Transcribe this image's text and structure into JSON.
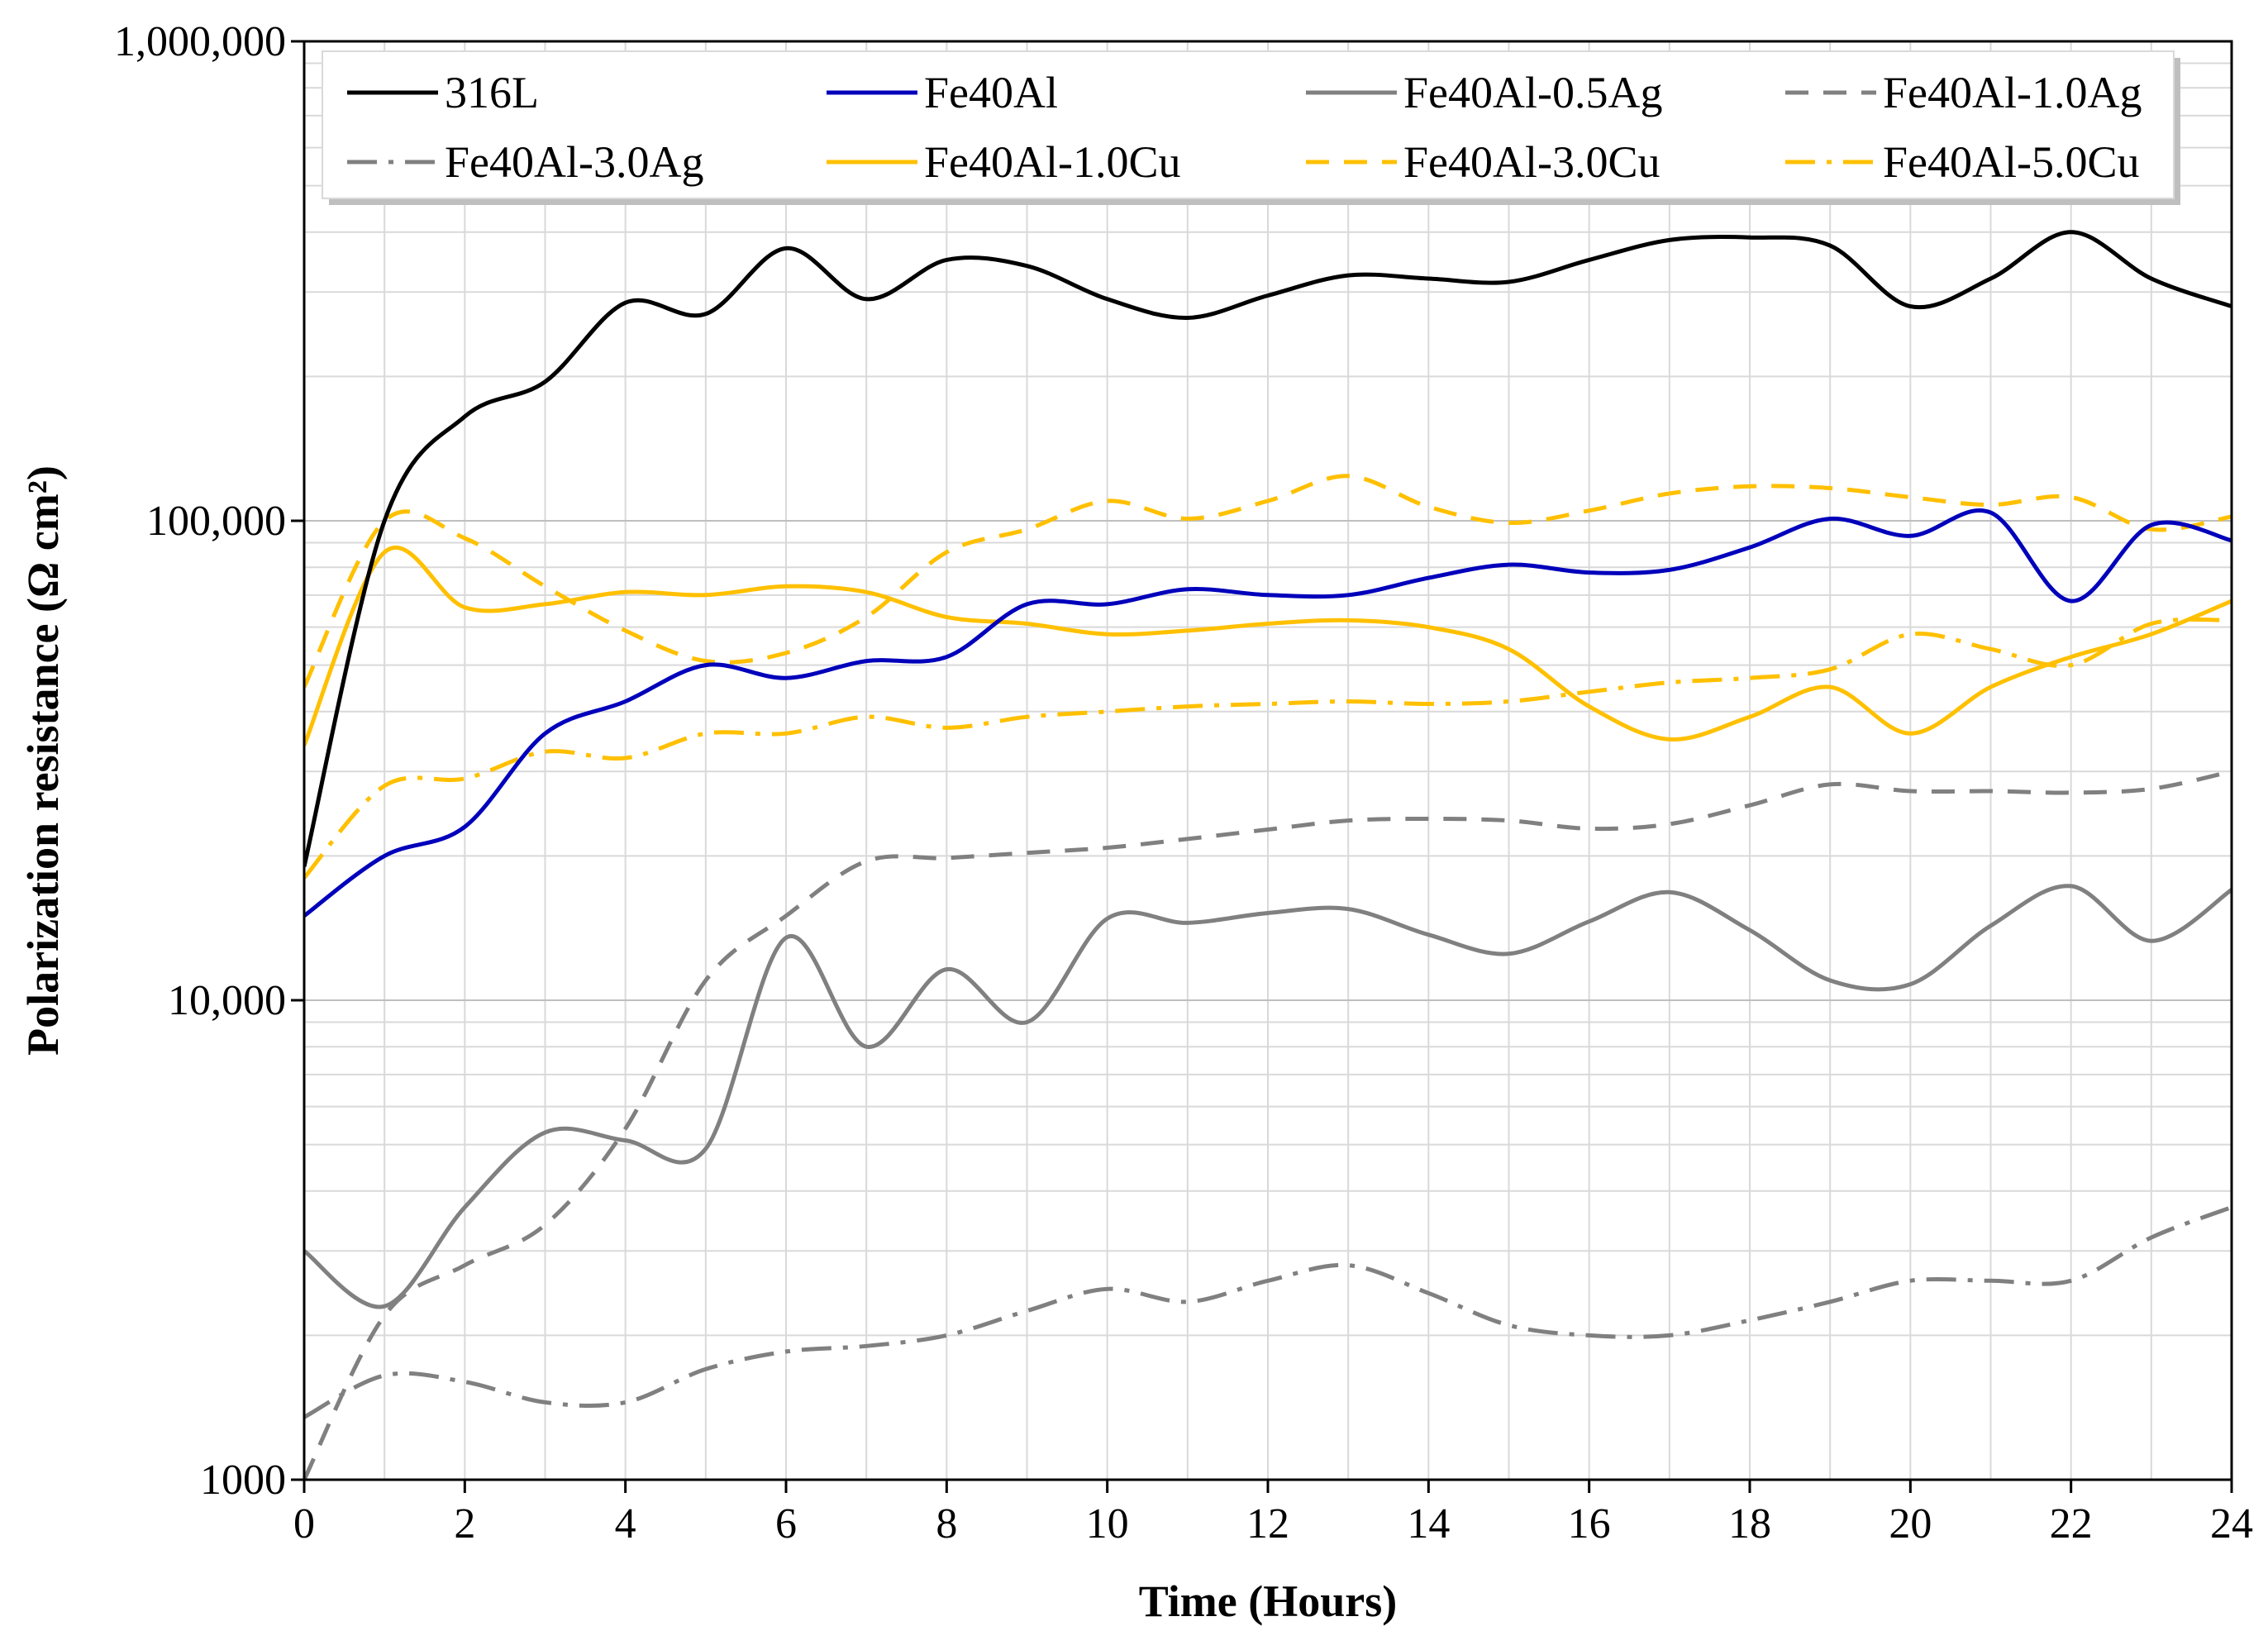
{
  "chart_data": {
    "type": "line",
    "title": "",
    "xlabel": "Time (Hours)",
    "ylabel": "Polarization resistance (Ω cm²)",
    "xlim": [
      0,
      24
    ],
    "ylim": [
      1000,
      1000000
    ],
    "y_scale": "log",
    "grid": true,
    "legend_position": "top",
    "x_ticks": [
      0,
      2,
      4,
      6,
      8,
      10,
      12,
      14,
      16,
      18,
      20,
      22,
      24
    ],
    "x_tick_labels": [
      "0",
      "2",
      "4",
      "6",
      "8",
      "10",
      "12",
      "14",
      "16",
      "18",
      "20",
      "22",
      "24"
    ],
    "y_ticks": [
      1000,
      10000,
      100000,
      1000000
    ],
    "y_tick_labels": [
      "1000",
      "10,000",
      "100,000",
      "1,000,000"
    ],
    "series": [
      {
        "name": "316L",
        "color": "#000000",
        "dash": "solid",
        "x": [
          0,
          1,
          2,
          3,
          4,
          5,
          6,
          7,
          8,
          9,
          10,
          11,
          12,
          13,
          14,
          15,
          16,
          17,
          18,
          19,
          20,
          21,
          22,
          23,
          24
        ],
        "y": [
          19000,
          100000,
          165000,
          195000,
          285000,
          270000,
          370000,
          290000,
          350000,
          340000,
          290000,
          265000,
          295000,
          325000,
          320000,
          315000,
          350000,
          385000,
          390000,
          375000,
          280000,
          320000,
          400000,
          320000,
          280000
        ]
      },
      {
        "name": "Fe40Al",
        "color": "#0000bb",
        "dash": "solid",
        "x": [
          0,
          1,
          2,
          3,
          4,
          5,
          6,
          7,
          8,
          9,
          10,
          11,
          12,
          13,
          14,
          15,
          16,
          17,
          18,
          19,
          20,
          21,
          22,
          23,
          24
        ],
        "y": [
          15000,
          20000,
          23000,
          36000,
          42000,
          50000,
          47000,
          51000,
          52000,
          67000,
          67000,
          72000,
          70000,
          70000,
          76000,
          81000,
          78000,
          79000,
          88000,
          101000,
          93000,
          104000,
          68000,
          98000,
          91000
        ]
      },
      {
        "name": "Fe40Al-0.5Ag",
        "color": "#808080",
        "dash": "solid",
        "x": [
          0,
          1,
          2,
          3,
          4,
          5,
          6,
          7,
          8,
          9,
          10,
          11,
          12,
          13,
          14,
          15,
          16,
          17,
          18,
          19,
          20,
          21,
          22,
          23,
          24
        ],
        "y": [
          3000,
          2300,
          3700,
          5300,
          5100,
          4900,
          13500,
          8000,
          11600,
          9000,
          14800,
          14500,
          15200,
          15500,
          13700,
          12500,
          14600,
          16800,
          14000,
          11000,
          10800,
          14300,
          17300,
          13300,
          17000
        ]
      },
      {
        "name": "Fe40Al-1.0Ag",
        "color": "#808080",
        "dash": "dash",
        "x": [
          0,
          1,
          2,
          3,
          4,
          5,
          6,
          7,
          8,
          9,
          10,
          11,
          12,
          13,
          14,
          15,
          16,
          17,
          18,
          19,
          20,
          21,
          22,
          23,
          24
        ],
        "y": [
          1000,
          2200,
          2800,
          3400,
          5400,
          11000,
          15000,
          19500,
          19800,
          20300,
          20800,
          21700,
          22700,
          23700,
          23900,
          23700,
          22800,
          23300,
          25500,
          28200,
          27300,
          27300,
          27100,
          27600,
          30000
        ]
      },
      {
        "name": "Fe40Al-3.0Ag",
        "color": "#808080",
        "dash": "dashdot",
        "x": [
          0,
          1,
          2,
          3,
          4,
          5,
          6,
          7,
          8,
          9,
          10,
          11,
          12,
          13,
          14,
          15,
          16,
          17,
          18,
          19,
          20,
          21,
          22,
          23,
          24
        ],
        "y": [
          1350,
          1650,
          1600,
          1450,
          1450,
          1700,
          1850,
          1900,
          2000,
          2250,
          2500,
          2350,
          2600,
          2800,
          2450,
          2100,
          2000,
          2000,
          2150,
          2350,
          2600,
          2600,
          2600,
          3200,
          3700
        ]
      },
      {
        "name": "Fe40Al-1.0Cu",
        "color": "#ffc000",
        "dash": "solid",
        "x": [
          0,
          1,
          2,
          3,
          4,
          5,
          6,
          7,
          8,
          9,
          10,
          11,
          12,
          13,
          14,
          15,
          16,
          17,
          18,
          19,
          20,
          21,
          22,
          23,
          24
        ],
        "y": [
          34000,
          86000,
          66000,
          67000,
          71000,
          70000,
          73000,
          71000,
          63000,
          61000,
          58000,
          59000,
          61000,
          62000,
          60000,
          54000,
          41000,
          35000,
          39000,
          45000,
          36000,
          45000,
          52000,
          58000,
          68000
        ]
      },
      {
        "name": "Fe40Al-3.0Cu",
        "color": "#ffc000",
        "dash": "dash",
        "x": [
          0,
          1,
          2,
          3,
          4,
          5,
          6,
          7,
          8,
          9,
          10,
          11,
          12,
          13,
          14,
          15,
          16,
          17,
          18,
          19,
          20,
          21,
          22,
          23,
          24
        ],
        "y": [
          45000,
          100000,
          92000,
          73000,
          59000,
          51000,
          53000,
          63000,
          86000,
          96000,
          110000,
          101000,
          110000,
          124000,
          107000,
          99000,
          105000,
          114000,
          118000,
          117000,
          112000,
          108000,
          112000,
          96000,
          102000
        ]
      },
      {
        "name": "Fe40Al-5.0Cu",
        "color": "#ffc000",
        "dash": "dashdot",
        "x": [
          0,
          1,
          2,
          3,
          4,
          5,
          6,
          7,
          8,
          9,
          10,
          11,
          12,
          13,
          14,
          15,
          16,
          17,
          18,
          19,
          20,
          21,
          22,
          23,
          24
        ],
        "y": [
          18000,
          28000,
          29000,
          33000,
          32000,
          36000,
          36000,
          39000,
          37000,
          39000,
          40000,
          41000,
          41500,
          42000,
          41500,
          42000,
          44000,
          46000,
          47000,
          49000,
          58000,
          54000,
          50000,
          61000,
          62000
        ]
      }
    ]
  }
}
